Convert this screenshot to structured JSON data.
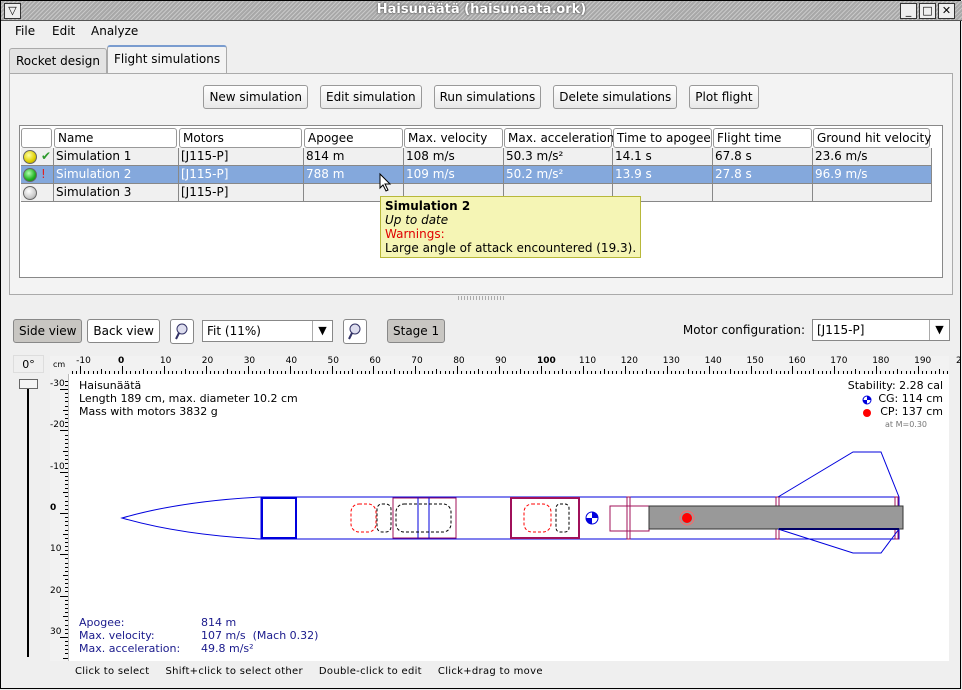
{
  "window": {
    "title": "Haisunäätä (haisunaata.ork)"
  },
  "menu": [
    "File",
    "Edit",
    "Analyze"
  ],
  "tabs": [
    {
      "label": "Rocket design",
      "active": false
    },
    {
      "label": "Flight simulations",
      "active": true
    }
  ],
  "buttons": {
    "new": "New simulation",
    "edit": "Edit simulation",
    "run": "Run simulations",
    "delete": "Delete simulations",
    "plot": "Plot flight"
  },
  "table": {
    "headers": [
      "",
      "Name",
      "Motors",
      "Apogee",
      "Max. velocity",
      "Max. acceleration",
      "Time to apogee",
      "Flight time",
      "Ground hit velocity"
    ],
    "rows": [
      {
        "status": "yellow",
        "flag": "✔",
        "flag_color": "#2e9a2e",
        "cells": [
          "Simulation 1",
          "[J115-P]",
          "814 m",
          "108 m/s",
          "50.3 m/s²",
          "14.1 s",
          "67.8 s",
          "23.6 m/s"
        ],
        "selected": false
      },
      {
        "status": "green",
        "flag": "!",
        "flag_color": "#e02020",
        "cells": [
          "Simulation 2",
          "[J115-P]",
          "788 m",
          "109 m/s",
          "50.2 m/s²",
          "13.9 s",
          "27.8 s",
          "96.9 m/s"
        ],
        "selected": true
      },
      {
        "status": "gray",
        "flag": "",
        "flag_color": "",
        "cells": [
          "Simulation 3",
          "[J115-P]",
          "",
          "",
          "",
          "",
          "",
          ""
        ],
        "selected": false
      }
    ]
  },
  "tooltip": {
    "title": "Simulation 2",
    "status": "Up to date",
    "warnings_label": "Warnings:",
    "warning": "Large angle of attack encountered (19.3)."
  },
  "view": {
    "side_view": "Side view",
    "back_view": "Back view",
    "zoom": "Fit (11%)",
    "stage": "Stage 1",
    "motor_config_label": "Motor configuration:",
    "motor_config": "[J115-P]",
    "angle": "0°",
    "ruler_unit": "cm",
    "hruler_labels": [
      "-10",
      "0",
      "10",
      "20",
      "30",
      "40",
      "50",
      "60",
      "70",
      "80",
      "90",
      "100",
      "110",
      "120",
      "130",
      "140",
      "150",
      "160",
      "170",
      "180",
      "190",
      "2"
    ],
    "vruler_labels": [
      "-30",
      "-20",
      "-10",
      "0",
      "10",
      "20",
      "30"
    ]
  },
  "rocket": {
    "name": "Haisunäätä",
    "dims": "Length 189 cm, max. diameter 10.2 cm",
    "mass": "Mass with motors 3832 g",
    "stability": "Stability: 2.28 cal",
    "cg": "CG: 114 cm",
    "cp": "CP: 137 cm",
    "mach": "at M=0.30"
  },
  "flight": {
    "apogee_label": "Apogee:",
    "apogee": "814 m",
    "vel_label": "Max. velocity:",
    "vel": "107 m/s  (Mach 0.32)",
    "acc_label": "Max. acceleration:",
    "acc": "49.8 m/s²"
  },
  "hints": [
    "Click to select",
    "Shift+click to select other",
    "Double-click to edit",
    "Click+drag to move"
  ],
  "colors": {
    "selection": "#84a8dc",
    "tooltip_bg": "#f5f5b5",
    "warning": "#e00000",
    "component": "#0000dd",
    "inner": "#a0105a",
    "motor": "#999999",
    "cp": "#ff0000"
  }
}
